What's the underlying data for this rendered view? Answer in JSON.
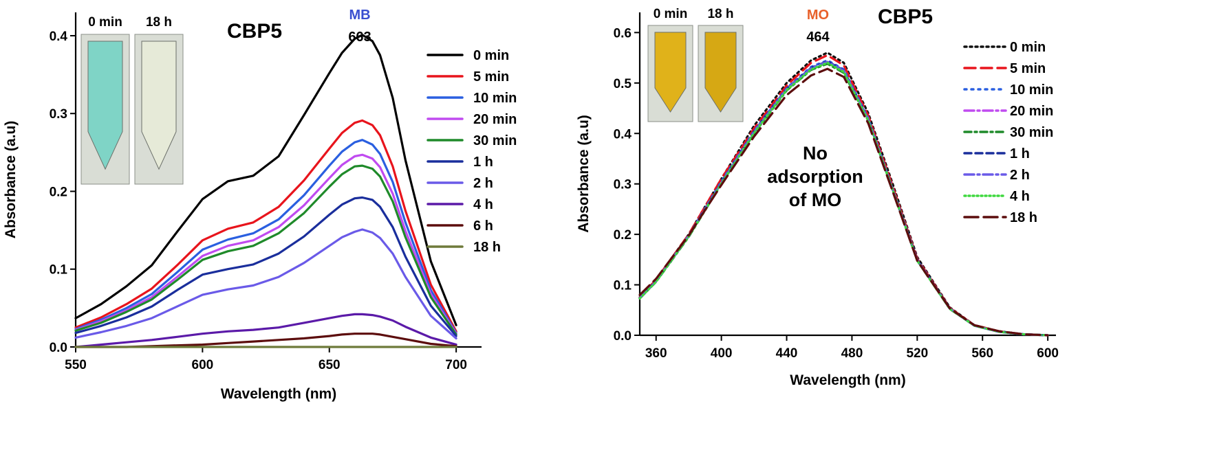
{
  "chart_data": [
    {
      "type": "line",
      "title": "CBP5",
      "xlabel": "Wavelength (nm)",
      "ylabel": "Absorbance (a.u)",
      "xlim": [
        550,
        710
      ],
      "ylim": [
        0,
        0.43
      ],
      "xticks": [
        550,
        600,
        650,
        700
      ],
      "yticks": [
        0.0,
        0.1,
        0.2,
        0.3,
        0.4
      ],
      "grid": false,
      "legend_position": "right",
      "peak": {
        "dye": "MB",
        "dye_color": "#3a4fd0",
        "wavelength": "663",
        "x": 663
      },
      "inset": {
        "labels": [
          "0 min",
          "18 h"
        ],
        "colors": [
          "#7fd4c6",
          "#e6ead8"
        ]
      },
      "x": [
        550,
        560,
        570,
        580,
        590,
        600,
        610,
        620,
        630,
        640,
        650,
        655,
        660,
        663,
        667,
        670,
        675,
        680,
        690,
        700
      ],
      "series": [
        {
          "name": "0 min",
          "color": "#000000",
          "dash": "solid",
          "values": [
            0.037,
            0.055,
            0.078,
            0.105,
            0.148,
            0.19,
            0.213,
            0.22,
            0.245,
            0.298,
            0.352,
            0.378,
            0.396,
            0.401,
            0.393,
            0.375,
            0.32,
            0.24,
            0.11,
            0.028
          ]
        },
        {
          "name": "5 min",
          "color": "#e8141c",
          "dash": "solid",
          "values": [
            0.025,
            0.038,
            0.055,
            0.075,
            0.105,
            0.137,
            0.152,
            0.16,
            0.18,
            0.214,
            0.255,
            0.275,
            0.288,
            0.291,
            0.285,
            0.272,
            0.232,
            0.175,
            0.08,
            0.02
          ]
        },
        {
          "name": "10 min",
          "color": "#2a5fe0",
          "dash": "solid",
          "values": [
            0.023,
            0.035,
            0.05,
            0.068,
            0.096,
            0.125,
            0.138,
            0.146,
            0.164,
            0.195,
            0.233,
            0.251,
            0.263,
            0.266,
            0.26,
            0.248,
            0.212,
            0.16,
            0.073,
            0.018
          ]
        },
        {
          "name": "20 min",
          "color": "#c04bf0",
          "dash": "solid",
          "values": [
            0.022,
            0.033,
            0.047,
            0.064,
            0.09,
            0.117,
            0.13,
            0.137,
            0.154,
            0.182,
            0.217,
            0.234,
            0.245,
            0.247,
            0.242,
            0.231,
            0.197,
            0.149,
            0.068,
            0.017
          ]
        },
        {
          "name": "30 min",
          "color": "#1f8a2a",
          "dash": "solid",
          "values": [
            0.021,
            0.031,
            0.045,
            0.061,
            0.086,
            0.112,
            0.123,
            0.13,
            0.146,
            0.172,
            0.206,
            0.222,
            0.232,
            0.233,
            0.229,
            0.219,
            0.187,
            0.141,
            0.064,
            0.016
          ]
        },
        {
          "name": "1 h",
          "color": "#1a2e9c",
          "dash": "solid",
          "values": [
            0.018,
            0.027,
            0.038,
            0.052,
            0.073,
            0.093,
            0.1,
            0.106,
            0.12,
            0.142,
            0.17,
            0.183,
            0.191,
            0.192,
            0.189,
            0.18,
            0.154,
            0.116,
            0.053,
            0.014
          ]
        },
        {
          "name": "2 h",
          "color": "#6a5ae8",
          "dash": "solid",
          "values": [
            0.012,
            0.019,
            0.027,
            0.037,
            0.052,
            0.067,
            0.074,
            0.079,
            0.09,
            0.108,
            0.13,
            0.141,
            0.148,
            0.151,
            0.147,
            0.14,
            0.12,
            0.09,
            0.04,
            0.011
          ]
        },
        {
          "name": "4 h",
          "color": "#5b1aa8",
          "dash": "solid",
          "values": [
            0.0,
            0.003,
            0.006,
            0.009,
            0.013,
            0.017,
            0.02,
            0.022,
            0.025,
            0.031,
            0.037,
            0.04,
            0.042,
            0.042,
            0.041,
            0.039,
            0.034,
            0.026,
            0.012,
            0.003
          ]
        },
        {
          "name": "6 h",
          "color": "#5c0d0d",
          "dash": "solid",
          "values": [
            0.0,
            0.0,
            0.0,
            0.001,
            0.002,
            0.003,
            0.005,
            0.007,
            0.009,
            0.011,
            0.014,
            0.016,
            0.017,
            0.017,
            0.017,
            0.016,
            0.013,
            0.01,
            0.004,
            0.001
          ]
        },
        {
          "name": "18 h",
          "color": "#6e7a3a",
          "dash": "solid",
          "values": [
            0.0,
            0.0,
            0.0,
            0.0,
            0.0,
            0.0,
            0.0,
            0.0,
            0.0,
            0.0,
            0.0,
            0.0,
            0.0,
            0.0,
            0.0,
            0.0,
            0.0,
            0.0,
            0.0,
            0.0
          ]
        }
      ]
    },
    {
      "type": "line",
      "title": "CBP5",
      "xlabel": "Wavelength (nm)",
      "ylabel": "Absorbance (a.u)",
      "xlim": [
        350,
        605
      ],
      "ylim": [
        0,
        0.64
      ],
      "xticks": [
        360,
        400,
        440,
        480,
        520,
        560,
        600
      ],
      "yticks": [
        0.0,
        0.1,
        0.2,
        0.3,
        0.4,
        0.5,
        0.6
      ],
      "grid": false,
      "legend_position": "right",
      "annotation": "No adsorption of MO",
      "peak": {
        "dye": "MO",
        "dye_color": "#e8602a",
        "wavelength": "464",
        "x": 464
      },
      "inset": {
        "labels": [
          "0 min",
          "18 h"
        ],
        "colors": [
          "#e0b21a",
          "#d6a814"
        ]
      },
      "x": [
        350,
        360,
        380,
        400,
        420,
        440,
        455,
        465,
        475,
        490,
        505,
        520,
        540,
        555,
        570,
        585,
        600
      ],
      "series": [
        {
          "name": "0 min",
          "color": "#111111",
          "dash": "3,5",
          "values": [
            0.075,
            0.11,
            0.2,
            0.31,
            0.415,
            0.5,
            0.545,
            0.56,
            0.54,
            0.44,
            0.3,
            0.155,
            0.055,
            0.02,
            0.008,
            0.002,
            0.0
          ]
        },
        {
          "name": "5 min",
          "color": "#e8141c",
          "dash": "16,8",
          "values": [
            0.075,
            0.11,
            0.2,
            0.31,
            0.41,
            0.495,
            0.54,
            0.555,
            0.535,
            0.435,
            0.295,
            0.152,
            0.054,
            0.02,
            0.008,
            0.002,
            0.0
          ]
        },
        {
          "name": "10 min",
          "color": "#2a5fe0",
          "dash": "3,7",
          "values": [
            0.074,
            0.108,
            0.198,
            0.305,
            0.405,
            0.49,
            0.532,
            0.545,
            0.527,
            0.43,
            0.29,
            0.15,
            0.053,
            0.019,
            0.007,
            0.002,
            0.0
          ]
        },
        {
          "name": "20 min",
          "color": "#c04bf0",
          "dash": "14,5,3,5",
          "values": [
            0.073,
            0.107,
            0.196,
            0.302,
            0.402,
            0.487,
            0.528,
            0.541,
            0.523,
            0.427,
            0.288,
            0.149,
            0.052,
            0.019,
            0.007,
            0.002,
            0.0
          ]
        },
        {
          "name": "30 min",
          "color": "#1f8a2a",
          "dash": "10,5,3,5",
          "values": [
            0.073,
            0.106,
            0.195,
            0.3,
            0.4,
            0.485,
            0.526,
            0.538,
            0.52,
            0.425,
            0.287,
            0.148,
            0.052,
            0.019,
            0.007,
            0.002,
            0.0
          ]
        },
        {
          "name": "1 h",
          "color": "#1a2e9c",
          "dash": "10,6",
          "values": [
            0.074,
            0.108,
            0.197,
            0.303,
            0.404,
            0.489,
            0.53,
            0.543,
            0.525,
            0.428,
            0.289,
            0.149,
            0.053,
            0.019,
            0.007,
            0.002,
            0.0
          ]
        },
        {
          "name": "2 h",
          "color": "#6a5ae8",
          "dash": "14,5,3,5",
          "values": [
            0.074,
            0.107,
            0.197,
            0.302,
            0.403,
            0.488,
            0.529,
            0.542,
            0.524,
            0.428,
            0.289,
            0.149,
            0.053,
            0.019,
            0.007,
            0.002,
            0.0
          ]
        },
        {
          "name": "4 h",
          "color": "#3ed83e",
          "dash": "2,4",
          "values": [
            0.073,
            0.106,
            0.196,
            0.301,
            0.401,
            0.486,
            0.527,
            0.54,
            0.522,
            0.426,
            0.288,
            0.148,
            0.052,
            0.019,
            0.007,
            0.002,
            0.0
          ]
        },
        {
          "name": "18 h",
          "color": "#5c0d0d",
          "dash": "20,8",
          "values": [
            0.08,
            0.112,
            0.198,
            0.298,
            0.394,
            0.476,
            0.515,
            0.528,
            0.512,
            0.42,
            0.285,
            0.148,
            0.053,
            0.02,
            0.008,
            0.002,
            0.0
          ]
        }
      ]
    }
  ]
}
